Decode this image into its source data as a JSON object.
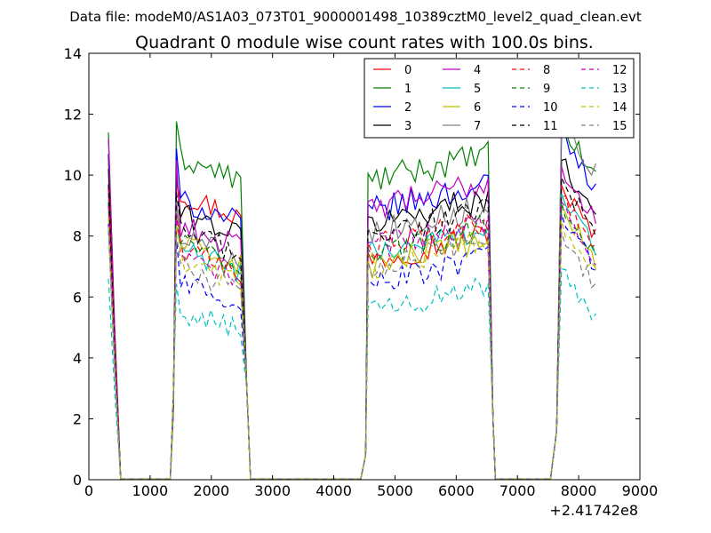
{
  "figure": {
    "suptitle": "Data file: modeM0/AS1A03_073T01_9000001498_10389cztM0_level2_quad_clean.evt"
  },
  "chart_data": {
    "type": "line",
    "title": "Quadrant 0 module wise count rates with 100.0s bins.",
    "xlabel": "",
    "ylabel": "",
    "x_offset_label": "+2.41742e8",
    "xlim": [
      0,
      9000
    ],
    "ylim": [
      0,
      14
    ],
    "x_ticks": [
      0,
      1000,
      2000,
      3000,
      4000,
      5000,
      6000,
      7000,
      8000,
      9000
    ],
    "x_tick_labels": [
      "0",
      "1000",
      "2000",
      "3000",
      "4000",
      "5000",
      "6000",
      "7000",
      "8000",
      "9000"
    ],
    "y_ticks": [
      0,
      2,
      4,
      6,
      8,
      10,
      12,
      14
    ],
    "y_tick_labels": [
      "0",
      "2",
      "4",
      "6",
      "8",
      "10",
      "12",
      "14"
    ],
    "grid": false,
    "legend_position": "top-right",
    "legend_columns": 4,
    "segments": [
      {
        "x_start": 320,
        "peak_points": 1,
        "x_end": 520
      },
      {
        "x_start": 1430,
        "x_end": 2520
      },
      {
        "x_start": 4560,
        "x_end": 6560
      },
      {
        "x_start": 7720,
        "x_end": 8320
      }
    ],
    "series": [
      {
        "name": "0",
        "color": "#ff0000",
        "style": "solid",
        "levels": [
          10.2,
          9.4,
          7.2,
          9.6
        ],
        "first_peak": 10.6
      },
      {
        "name": "1",
        "color": "#008000",
        "style": "solid",
        "levels": [
          11.4,
          10.6,
          9.8,
          11.6
        ],
        "first_peak": 11.4
      },
      {
        "name": "2",
        "color": "#0000ff",
        "style": "solid",
        "levels": [
          10.6,
          9.2,
          8.8,
          11.3
        ],
        "first_peak": 10.7
      },
      {
        "name": "3",
        "color": "#000000",
        "style": "solid",
        "levels": [
          9.8,
          8.8,
          8.4,
          10.4
        ],
        "first_peak": 10.2
      },
      {
        "name": "4",
        "color": "#bf00bf",
        "style": "solid",
        "levels": [
          10.4,
          8.4,
          8.9,
          10.2
        ],
        "first_peak": 11.2
      },
      {
        "name": "5",
        "color": "#00bfbf",
        "style": "solid",
        "levels": [
          9.1,
          7.6,
          7.4,
          9.3
        ],
        "first_peak": 9.2
      },
      {
        "name": "6",
        "color": "#bfbf00",
        "style": "solid",
        "levels": [
          8.9,
          7.8,
          7.0,
          8.9
        ],
        "first_peak": 9.0
      },
      {
        "name": "7",
        "color": "#808080",
        "style": "solid",
        "levels": [
          9.4,
          8.1,
          8.1,
          11.8
        ],
        "first_peak": 9.5
      },
      {
        "name": "8",
        "color": "#ff0000",
        "style": "dashed",
        "levels": [
          9.0,
          7.6,
          7.6,
          9.2
        ],
        "first_peak": 9.6
      },
      {
        "name": "9",
        "color": "#008000",
        "style": "dashed",
        "levels": [
          8.7,
          7.8,
          7.4,
          9.0
        ],
        "first_peak": 9.1
      },
      {
        "name": "10",
        "color": "#0000ff",
        "style": "dashed",
        "levels": [
          7.6,
          6.6,
          6.4,
          8.6
        ],
        "first_peak": 8.4
      },
      {
        "name": "11",
        "color": "#000000",
        "style": "dashed",
        "levels": [
          9.2,
          8.2,
          8.0,
          9.8
        ],
        "first_peak": 9.7
      },
      {
        "name": "12",
        "color": "#bf00bf",
        "style": "dashed",
        "levels": [
          8.6,
          7.4,
          7.6,
          9.0
        ],
        "first_peak": 9.0
      },
      {
        "name": "13",
        "color": "#00bfbf",
        "style": "dashed",
        "levels": [
          6.4,
          5.6,
          5.5,
          6.8
        ],
        "first_peak": 6.6
      },
      {
        "name": "14",
        "color": "#bfbf00",
        "style": "dashed",
        "levels": [
          8.4,
          7.2,
          7.0,
          8.4
        ],
        "first_peak": 8.6
      },
      {
        "name": "15",
        "color": "#808080",
        "style": "dashed",
        "levels": [
          8.2,
          7.0,
          7.0,
          8.0
        ],
        "first_peak": 8.2
      }
    ]
  }
}
